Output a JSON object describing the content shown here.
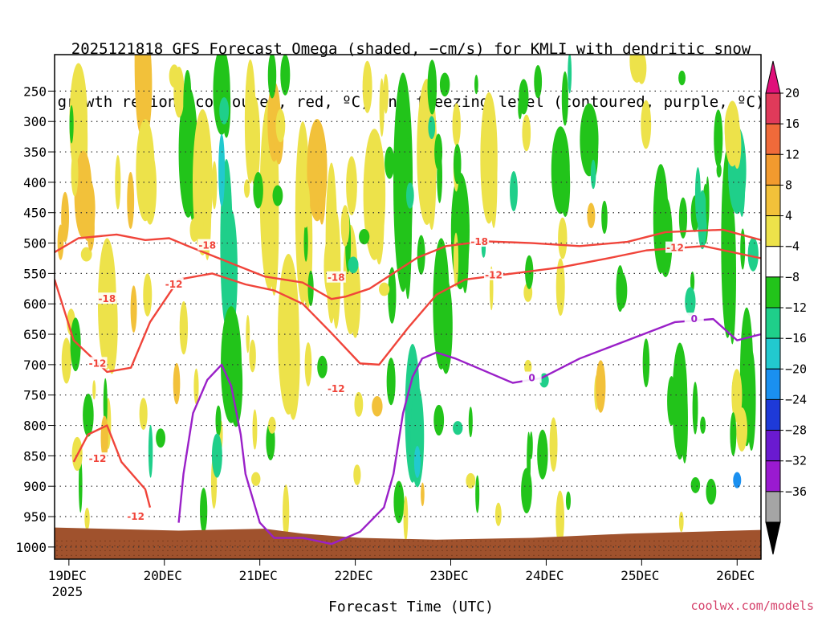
{
  "chart_data": {
    "type": "heatmap",
    "title_lines": [
      "2025121818 GFS Forecast Omega (shaded, −cm/s) for KMLI with dendritic snow",
      "growth region (contoured, red, ºC) and freezing level (contoured, purple, ºC)"
    ],
    "xlabel": "Forecast Time (UTC)",
    "y_ticks": [
      "250",
      "300",
      "350",
      "400",
      "450",
      "500",
      "550",
      "600",
      "650",
      "700",
      "750",
      "800",
      "850",
      "900",
      "950",
      "1000"
    ],
    "y_values": [
      250,
      300,
      350,
      400,
      450,
      500,
      550,
      600,
      650,
      700,
      750,
      800,
      850,
      900,
      950,
      1000
    ],
    "y_range": [
      190,
      1020
    ],
    "x_ticks": [
      "19DEC",
      "20DEC",
      "21DEC",
      "22DEC",
      "23DEC",
      "24DEC",
      "25DEC",
      "26DEC"
    ],
    "x_values": [
      0.15,
      1.15,
      2.15,
      3.15,
      4.15,
      5.15,
      6.15,
      7.15
    ],
    "x_range": [
      0,
      7.4
    ],
    "x_sublabel": "2025",
    "colorbar": {
      "ticks": [
        "20",
        "16",
        "12",
        "8",
        "4",
        "−4",
        "−8",
        "−12",
        "−16",
        "−20",
        "−24",
        "−28",
        "−32",
        "−36"
      ],
      "bins": [
        {
          "color": "#e03a5a"
        },
        {
          "color": "#f06a3a"
        },
        {
          "color": "#f29a2e"
        },
        {
          "color": "#f2c13a"
        },
        {
          "color": "#ede24a"
        },
        {
          "color": "#ffffff"
        },
        {
          "color": "#22c41a"
        },
        {
          "color": "#1fcf8a"
        },
        {
          "color": "#22c9cf"
        },
        {
          "color": "#1a90f0"
        },
        {
          "color": "#1e3ad8"
        },
        {
          "color": "#6a1ad0"
        },
        {
          "color": "#9a1ad0"
        },
        {
          "color": "#a5a5a5"
        }
      ],
      "top_color": "#e0107a",
      "bottom_color": "#000000"
    },
    "ground_color": "#a0522d",
    "contours": [
      {
        "name": "-18C",
        "color": "#f0443a",
        "label": "-18",
        "points": [
          [
            0.0,
            515
          ],
          [
            0.25,
            492
          ],
          [
            0.65,
            486
          ],
          [
            0.95,
            495
          ],
          [
            1.2,
            492
          ],
          [
            1.4,
            505
          ],
          [
            1.8,
            530
          ],
          [
            2.2,
            555
          ],
          [
            2.6,
            565
          ],
          [
            2.9,
            592
          ],
          [
            3.05,
            588
          ],
          [
            3.3,
            575
          ],
          [
            3.8,
            524
          ],
          [
            4.1,
            505
          ],
          [
            4.5,
            497
          ],
          [
            5.0,
            500
          ],
          [
            5.5,
            505
          ],
          [
            6.0,
            498
          ],
          [
            6.4,
            482
          ],
          [
            7.0,
            478
          ],
          [
            7.4,
            495
          ]
        ],
        "labels": [
          [
            0.55,
            592
          ],
          [
            1.6,
            504
          ],
          [
            2.95,
            557
          ],
          [
            4.45,
            498
          ]
        ]
      },
      {
        "name": "-12C",
        "color": "#f0443a",
        "label": "-12",
        "points": [
          [
            0.0,
            560
          ],
          [
            0.2,
            660
          ],
          [
            0.55,
            712
          ],
          [
            0.8,
            705
          ],
          [
            1.0,
            630
          ],
          [
            1.3,
            560
          ],
          [
            1.65,
            550
          ],
          [
            2.0,
            568
          ],
          [
            2.3,
            578
          ],
          [
            2.6,
            600
          ],
          [
            2.9,
            648
          ],
          [
            3.2,
            698
          ],
          [
            3.4,
            700
          ],
          [
            3.7,
            640
          ],
          [
            4.0,
            585
          ],
          [
            4.3,
            560
          ],
          [
            4.8,
            550
          ],
          [
            5.3,
            540
          ],
          [
            5.8,
            525
          ],
          [
            6.2,
            512
          ],
          [
            6.8,
            505
          ],
          [
            7.4,
            525
          ]
        ],
        "labels": [
          [
            0.45,
            698
          ],
          [
            1.25,
            568
          ],
          [
            2.95,
            740
          ],
          [
            4.6,
            553
          ],
          [
            6.5,
            508
          ]
        ]
      },
      {
        "name": "-12C-low",
        "color": "#f0443a",
        "label": "-12",
        "points": [
          [
            0.2,
            860
          ],
          [
            0.35,
            815
          ],
          [
            0.55,
            800
          ],
          [
            0.7,
            860
          ],
          [
            0.95,
            905
          ],
          [
            1.0,
            935
          ]
        ],
        "labels": [
          [
            0.85,
            950
          ],
          [
            0.45,
            855
          ]
        ]
      },
      {
        "name": "0C",
        "color": "#9a20c8",
        "label": "0",
        "points": [
          [
            1.3,
            960
          ],
          [
            1.35,
            880
          ],
          [
            1.45,
            780
          ],
          [
            1.6,
            725
          ],
          [
            1.75,
            700
          ],
          [
            1.85,
            735
          ],
          [
            1.95,
            815
          ],
          [
            2.0,
            880
          ],
          [
            2.15,
            960
          ],
          [
            2.3,
            985
          ],
          [
            2.6,
            985
          ],
          [
            2.9,
            995
          ],
          [
            3.2,
            975
          ],
          [
            3.45,
            935
          ],
          [
            3.55,
            880
          ],
          [
            3.65,
            780
          ],
          [
            3.75,
            720
          ],
          [
            3.85,
            690
          ],
          [
            4.0,
            680
          ],
          [
            4.2,
            690
          ],
          [
            4.5,
            710
          ],
          [
            4.8,
            730
          ],
          [
            5.1,
            722
          ],
          [
            5.5,
            690
          ],
          [
            6.0,
            660
          ],
          [
            6.5,
            630
          ],
          [
            6.9,
            625
          ],
          [
            7.15,
            660
          ],
          [
            7.4,
            650
          ]
        ],
        "labels": [
          [
            5.0,
            722
          ],
          [
            6.7,
            625
          ]
        ]
      }
    ]
  }
}
